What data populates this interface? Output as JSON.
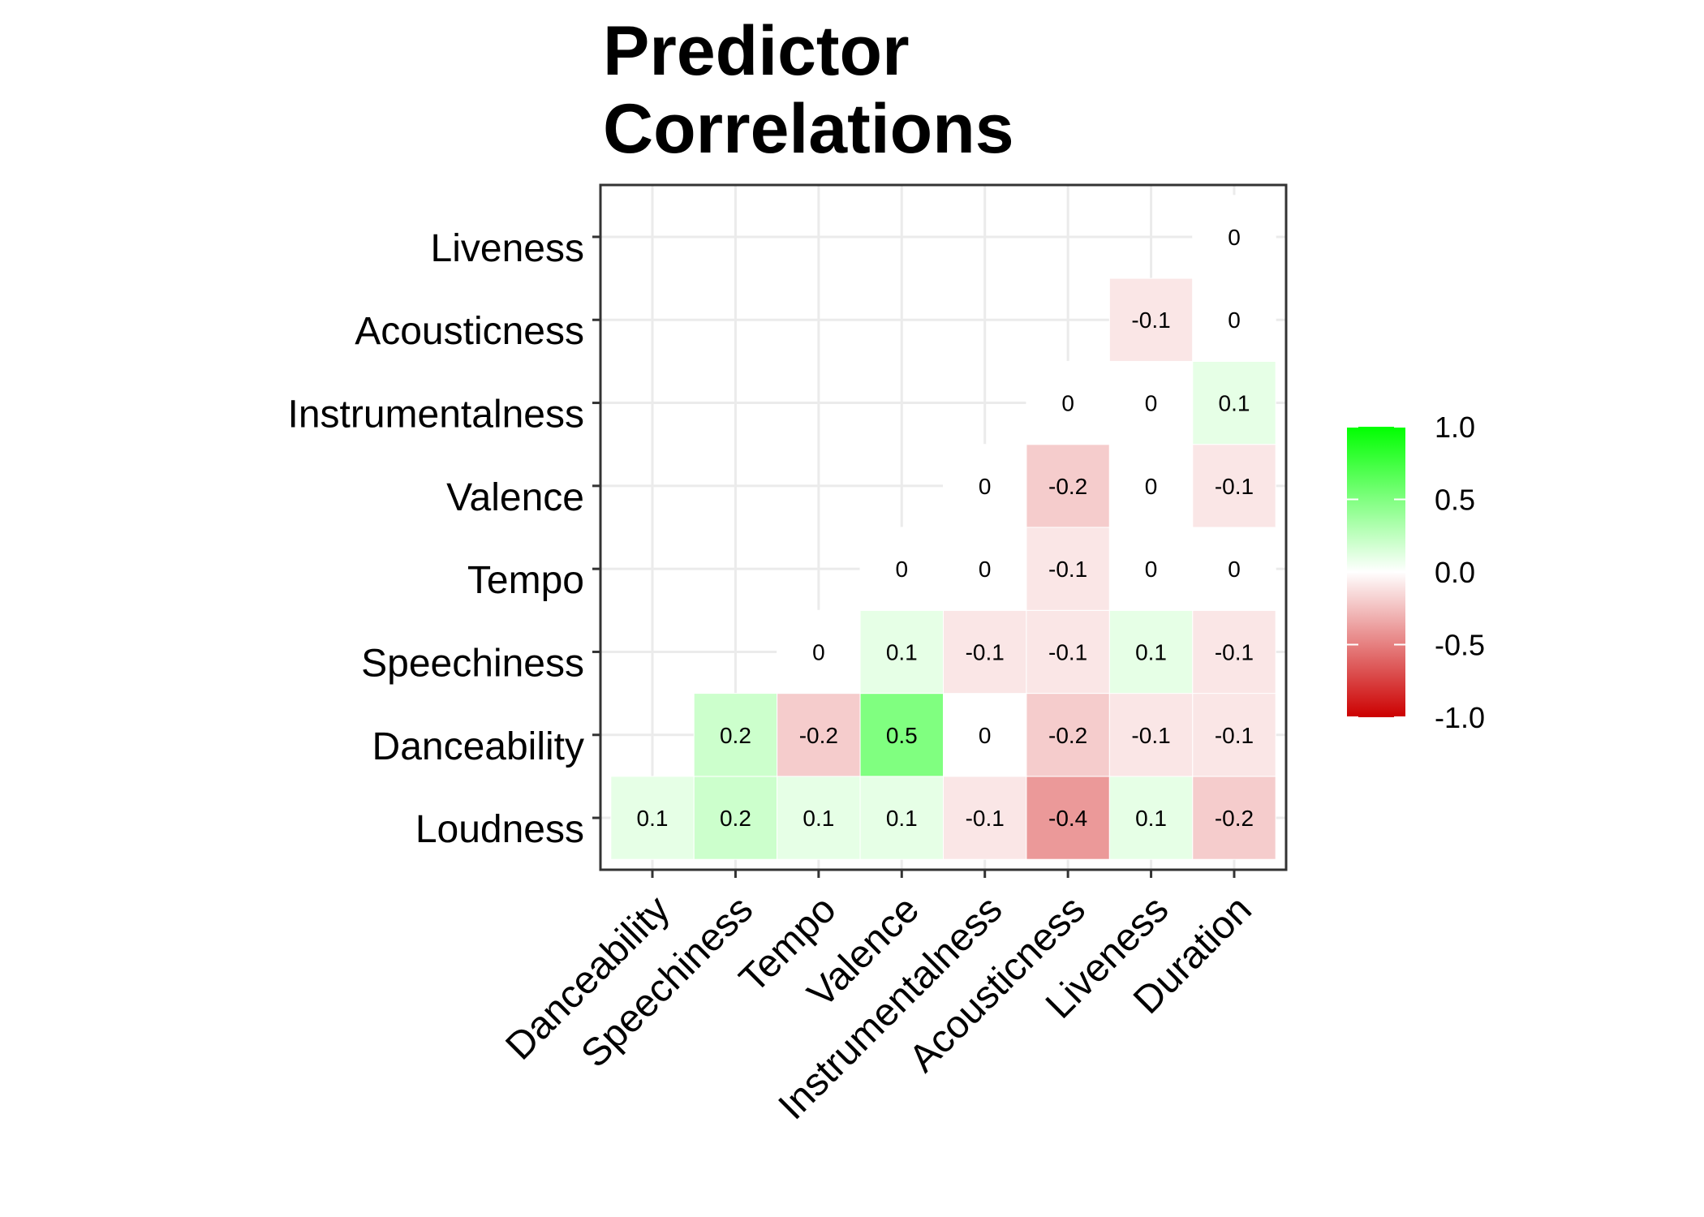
{
  "colors": {
    "low": "#cc0000",
    "mid": "#ffffff",
    "high": "#00ff00",
    "grid": "#ebebeb",
    "panel_border": "#333333"
  },
  "chart_data": {
    "type": "heatmap",
    "title": "Predictor\nCorrelations",
    "xlabel": "",
    "ylabel": "",
    "x_categories": [
      "Danceability",
      "Speechiness",
      "Tempo",
      "Valence",
      "Instrumentalness",
      "Acousticness",
      "Liveness",
      "Duration"
    ],
    "y_categories": [
      "Loudness",
      "Danceability",
      "Speechiness",
      "Tempo",
      "Valence",
      "Instrumentalness",
      "Acousticness",
      "Liveness"
    ],
    "cells": [
      {
        "x": "Danceability",
        "y": "Loudness",
        "value": 0.1
      },
      {
        "x": "Speechiness",
        "y": "Loudness",
        "value": 0.2
      },
      {
        "x": "Tempo",
        "y": "Loudness",
        "value": 0.1
      },
      {
        "x": "Valence",
        "y": "Loudness",
        "value": 0.1
      },
      {
        "x": "Instrumentalness",
        "y": "Loudness",
        "value": -0.1
      },
      {
        "x": "Acousticness",
        "y": "Loudness",
        "value": -0.4
      },
      {
        "x": "Liveness",
        "y": "Loudness",
        "value": 0.1
      },
      {
        "x": "Duration",
        "y": "Loudness",
        "value": -0.2
      },
      {
        "x": "Speechiness",
        "y": "Danceability",
        "value": 0.2
      },
      {
        "x": "Tempo",
        "y": "Danceability",
        "value": -0.2
      },
      {
        "x": "Valence",
        "y": "Danceability",
        "value": 0.5
      },
      {
        "x": "Instrumentalness",
        "y": "Danceability",
        "value": 0
      },
      {
        "x": "Acousticness",
        "y": "Danceability",
        "value": -0.2
      },
      {
        "x": "Liveness",
        "y": "Danceability",
        "value": -0.1
      },
      {
        "x": "Duration",
        "y": "Danceability",
        "value": -0.1
      },
      {
        "x": "Tempo",
        "y": "Speechiness",
        "value": 0
      },
      {
        "x": "Valence",
        "y": "Speechiness",
        "value": 0.1
      },
      {
        "x": "Instrumentalness",
        "y": "Speechiness",
        "value": -0.1
      },
      {
        "x": "Acousticness",
        "y": "Speechiness",
        "value": -0.1
      },
      {
        "x": "Liveness",
        "y": "Speechiness",
        "value": 0.1
      },
      {
        "x": "Duration",
        "y": "Speechiness",
        "value": -0.1
      },
      {
        "x": "Valence",
        "y": "Tempo",
        "value": 0
      },
      {
        "x": "Instrumentalness",
        "y": "Tempo",
        "value": 0
      },
      {
        "x": "Acousticness",
        "y": "Tempo",
        "value": -0.1
      },
      {
        "x": "Liveness",
        "y": "Tempo",
        "value": 0
      },
      {
        "x": "Duration",
        "y": "Tempo",
        "value": 0
      },
      {
        "x": "Instrumentalness",
        "y": "Valence",
        "value": 0
      },
      {
        "x": "Acousticness",
        "y": "Valence",
        "value": -0.2
      },
      {
        "x": "Liveness",
        "y": "Valence",
        "value": 0
      },
      {
        "x": "Duration",
        "y": "Valence",
        "value": -0.1
      },
      {
        "x": "Acousticness",
        "y": "Instrumentalness",
        "value": 0
      },
      {
        "x": "Liveness",
        "y": "Instrumentalness",
        "value": 0
      },
      {
        "x": "Duration",
        "y": "Instrumentalness",
        "value": 0.1
      },
      {
        "x": "Liveness",
        "y": "Acousticness",
        "value": -0.1
      },
      {
        "x": "Duration",
        "y": "Acousticness",
        "value": 0
      },
      {
        "x": "Duration",
        "y": "Liveness",
        "value": 0
      }
    ],
    "scale": {
      "min": -1.0,
      "max": 1.0,
      "midpoint": 0.0,
      "breaks": [
        1.0,
        0.5,
        0.0,
        -0.5,
        -1.0
      ],
      "break_labels": [
        "1.0",
        "0.5",
        "0.0",
        "-0.5",
        "-1.0"
      ]
    },
    "grid": true,
    "legend_position": "right"
  }
}
